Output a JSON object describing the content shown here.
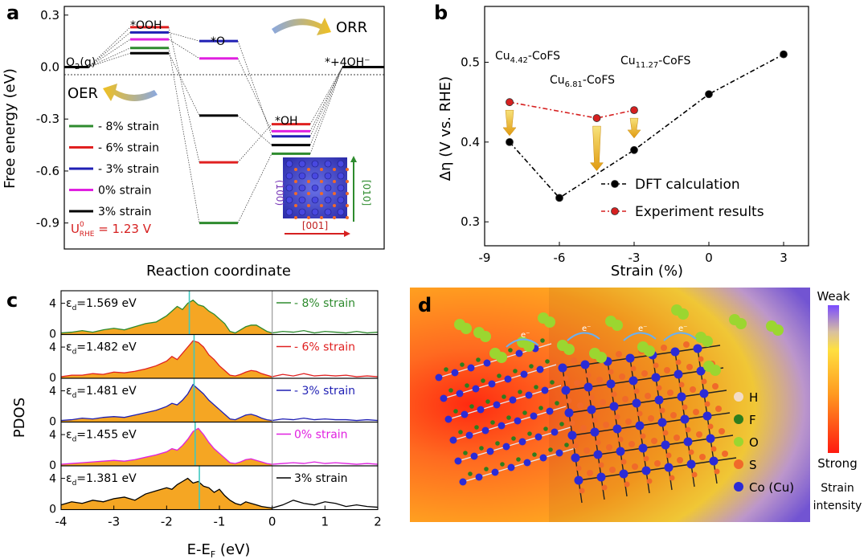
{
  "panels": {
    "a": {
      "letter": "a"
    },
    "b": {
      "letter": "b"
    },
    "c": {
      "letter": "c"
    },
    "d": {
      "letter": "d"
    }
  },
  "chart_data": [
    {
      "panel": "a",
      "type": "diagram",
      "ylabel": "Free energy (eV)",
      "xlabel": "Reaction coordinate",
      "ylim": [
        -1.05,
        0.35
      ],
      "yticks": [
        "0.3",
        "0.0",
        "-0.3",
        "-0.6",
        "-0.9"
      ],
      "ytick_values": [
        0.3,
        0.0,
        -0.3,
        -0.6,
        -0.9
      ],
      "states": [
        "O2(g)",
        "*OOH",
        "*O",
        "*OH",
        "*+4OH⁻"
      ],
      "state_labels": {
        "o2": "O",
        "o2_sub": "2",
        "o2_tail": "(g)",
        "ooh": "*OOH",
        "o": "*O",
        "oh": "*OH",
        "end": "*+4OH⁻"
      },
      "orr_label": "ORR",
      "oer_label": "OER",
      "u_label": {
        "u": "U",
        "sup": "0",
        "sub": "RHE",
        "value": " = 1.23 V"
      },
      "inset_labels": {
        "v100": "(100)",
        "h001": "[001]",
        "v010": "[010]"
      },
      "series": [
        {
          "name": "- 8% strain",
          "color": "#2e8b2e",
          "values": [
            0.0,
            0.11,
            -0.9,
            -0.5,
            0.0
          ]
        },
        {
          "name": "- 6% strain",
          "color": "#e02020",
          "values": [
            0.0,
            0.23,
            -0.55,
            -0.33,
            0.0
          ]
        },
        {
          "name": "- 3% strain",
          "color": "#1f1fb4",
          "values": [
            0.0,
            0.2,
            0.15,
            -0.4,
            0.0
          ]
        },
        {
          "name": "0% strain",
          "color": "#e020e0",
          "values": [
            0.0,
            0.16,
            0.05,
            -0.37,
            0.0
          ]
        },
        {
          "name": "3% strain",
          "color": "#000000",
          "values": [
            0.0,
            0.08,
            -0.28,
            -0.45,
            0.0
          ]
        }
      ]
    },
    {
      "panel": "b",
      "type": "line",
      "xlabel": "Strain (%)",
      "ylabel": "Δη (V vs. RHE)",
      "xlim": [
        -9,
        4
      ],
      "ylim": [
        0.27,
        0.57
      ],
      "xticks": [
        "-9",
        "-6",
        "-3",
        "0",
        "3"
      ],
      "xtick_values": [
        -9,
        -6,
        -3,
        0,
        3
      ],
      "yticks": [
        "0.3",
        "0.4",
        "0.5"
      ],
      "ytick_values": [
        0.3,
        0.4,
        0.5
      ],
      "legend": "bottom-right",
      "series": [
        {
          "name": "DFT calculation",
          "color": "#000000",
          "x": [
            -8,
            -6,
            -3,
            0,
            3
          ],
          "y": [
            0.4,
            0.33,
            0.39,
            0.46,
            0.51
          ]
        },
        {
          "name": "Experiment results",
          "color": "#d62020",
          "x": [
            -8,
            -4.5,
            -3
          ],
          "y": [
            0.45,
            0.43,
            0.44
          ]
        }
      ],
      "annotations": [
        {
          "base": "Cu",
          "sub": "4.42",
          "tail": "-CoFS"
        },
        {
          "base": "Cu",
          "sub": "6.81",
          "tail": "-CoFS"
        },
        {
          "base": "Cu",
          "sub": "11.27",
          "tail": "-CoFS"
        }
      ]
    },
    {
      "panel": "c",
      "type": "area",
      "xlabel_main": "E-E",
      "xlabel_sub": "F",
      "xlabel_unit": " (eV)",
      "ylabel": "PDOS",
      "xlim": [
        -4,
        2
      ],
      "xticks": [
        "-4",
        "-3",
        "-2",
        "-1",
        "0",
        "1",
        "2"
      ],
      "xtick_values": [
        -4,
        -3,
        -2,
        -1,
        0,
        1,
        2
      ],
      "ytick_labels": [
        "4",
        "0"
      ],
      "fill_color": "#f5a623",
      "dband_line_color": "#3ec8c0",
      "series": [
        {
          "name": "- 8% strain",
          "eps_value": "=1.569 eV",
          "dband_center": -1.57,
          "color": "#2e8b2e",
          "x": [
            -4,
            -3.8,
            -3.6,
            -3.4,
            -3.2,
            -3,
            -2.8,
            -2.6,
            -2.4,
            -2.2,
            -2,
            -1.9,
            -1.8,
            -1.7,
            -1.6,
            -1.5,
            -1.4,
            -1.3,
            -1.2,
            -1.1,
            -1,
            -0.9,
            -0.8,
            -0.7,
            -0.6,
            -0.5,
            -0.4,
            -0.3,
            -0.2,
            -0.1,
            0,
            0.2,
            0.4,
            0.6,
            0.8,
            1,
            1.2,
            1.4,
            1.6,
            1.8,
            2
          ],
          "y": [
            0.2,
            0.3,
            0.5,
            0.3,
            0.6,
            0.8,
            0.6,
            1.0,
            1.4,
            1.6,
            2.4,
            3.0,
            3.6,
            3.2,
            4.0,
            4.4,
            3.8,
            3.6,
            3.0,
            2.6,
            2.0,
            1.4,
            0.4,
            0.2,
            0.6,
            1.0,
            1.2,
            1.2,
            0.8,
            0.4,
            0.2,
            0.4,
            0.3,
            0.5,
            0.2,
            0.4,
            0.3,
            0.2,
            0.4,
            0.2,
            0.3
          ]
        },
        {
          "name": "- 6% strain",
          "eps_value": "=1.482 eV",
          "dband_center": -1.48,
          "color": "#e02020",
          "x": [
            -4,
            -3.8,
            -3.6,
            -3.4,
            -3.2,
            -3,
            -2.8,
            -2.6,
            -2.4,
            -2.2,
            -2,
            -1.9,
            -1.8,
            -1.7,
            -1.6,
            -1.5,
            -1.4,
            -1.3,
            -1.2,
            -1.1,
            -1,
            -0.9,
            -0.8,
            -0.7,
            -0.6,
            -0.5,
            -0.4,
            -0.3,
            -0.2,
            -0.1,
            0,
            0.2,
            0.4,
            0.6,
            0.8,
            1,
            1.2,
            1.4,
            1.6,
            1.8,
            2
          ],
          "y": [
            0.2,
            0.4,
            0.4,
            0.6,
            0.5,
            0.8,
            0.7,
            0.9,
            1.2,
            1.6,
            2.2,
            2.8,
            2.4,
            3.2,
            4.0,
            4.8,
            4.6,
            4.0,
            3.0,
            2.4,
            1.6,
            1.0,
            0.4,
            0.3,
            0.5,
            0.8,
            1.0,
            0.9,
            0.6,
            0.4,
            0.2,
            0.5,
            0.3,
            0.6,
            0.3,
            0.4,
            0.3,
            0.4,
            0.2,
            0.3,
            0.2
          ]
        },
        {
          "name": "- 3% strain",
          "eps_value": "=1.481 eV",
          "dband_center": -1.48,
          "color": "#1f1fb4",
          "x": [
            -4,
            -3.8,
            -3.6,
            -3.4,
            -3.2,
            -3,
            -2.8,
            -2.6,
            -2.4,
            -2.2,
            -2,
            -1.9,
            -1.8,
            -1.7,
            -1.6,
            -1.5,
            -1.4,
            -1.3,
            -1.2,
            -1.1,
            -1,
            -0.9,
            -0.8,
            -0.7,
            -0.6,
            -0.5,
            -0.4,
            -0.3,
            -0.2,
            -0.1,
            0,
            0.2,
            0.4,
            0.6,
            0.8,
            1,
            1.2,
            1.4,
            1.6,
            1.8,
            2
          ],
          "y": [
            0.2,
            0.3,
            0.5,
            0.4,
            0.6,
            0.7,
            0.6,
            0.9,
            1.2,
            1.5,
            2.0,
            2.4,
            2.2,
            2.8,
            3.6,
            4.8,
            4.2,
            3.6,
            2.8,
            2.2,
            1.6,
            1.0,
            0.4,
            0.3,
            0.6,
            0.9,
            1.0,
            0.8,
            0.5,
            0.3,
            0.2,
            0.4,
            0.3,
            0.5,
            0.3,
            0.4,
            0.3,
            0.3,
            0.2,
            0.3,
            0.2
          ]
        },
        {
          "name": "0% strain",
          "eps_value": "=1.455 eV",
          "dband_center": -1.46,
          "color": "#e020e0",
          "x": [
            -4,
            -3.8,
            -3.6,
            -3.4,
            -3.2,
            -3,
            -2.8,
            -2.6,
            -2.4,
            -2.2,
            -2,
            -1.9,
            -1.8,
            -1.7,
            -1.6,
            -1.5,
            -1.4,
            -1.3,
            -1.2,
            -1.1,
            -1,
            -0.9,
            -0.8,
            -0.7,
            -0.6,
            -0.5,
            -0.4,
            -0.3,
            -0.2,
            -0.1,
            0,
            0.2,
            0.4,
            0.6,
            0.8,
            1,
            1.2,
            1.4,
            1.6,
            1.8,
            2
          ],
          "y": [
            0.2,
            0.3,
            0.4,
            0.5,
            0.6,
            0.7,
            0.6,
            0.8,
            1.1,
            1.4,
            1.8,
            2.2,
            2.0,
            2.6,
            3.4,
            4.4,
            4.8,
            4.0,
            3.0,
            2.2,
            1.6,
            1.0,
            0.4,
            0.3,
            0.5,
            0.8,
            0.9,
            0.7,
            0.5,
            0.3,
            0.2,
            0.3,
            0.4,
            0.3,
            0.5,
            0.3,
            0.4,
            0.3,
            0.2,
            0.3,
            0.2
          ]
        },
        {
          "name": "3% strain",
          "eps_value": "=1.381 eV",
          "dband_center": -1.38,
          "color": "#000000",
          "x": [
            -4,
            -3.8,
            -3.6,
            -3.4,
            -3.2,
            -3,
            -2.8,
            -2.6,
            -2.4,
            -2.2,
            -2,
            -1.9,
            -1.8,
            -1.7,
            -1.6,
            -1.5,
            -1.4,
            -1.3,
            -1.2,
            -1.1,
            -1,
            -0.9,
            -0.8,
            -0.7,
            -0.6,
            -0.5,
            -0.4,
            -0.3,
            -0.2,
            -0.1,
            0,
            0.2,
            0.4,
            0.6,
            0.8,
            1,
            1.2,
            1.4,
            1.6,
            1.8,
            2
          ],
          "y": [
            0.6,
            1.0,
            0.8,
            1.2,
            1.0,
            1.4,
            1.6,
            1.2,
            2.0,
            2.4,
            2.8,
            2.6,
            3.2,
            3.6,
            4.0,
            3.4,
            3.6,
            3.0,
            2.8,
            2.2,
            2.6,
            1.8,
            1.2,
            0.8,
            0.6,
            1.0,
            0.8,
            0.6,
            0.4,
            0.3,
            0.2,
            0.6,
            1.2,
            0.8,
            0.6,
            1.0,
            0.8,
            0.4,
            0.6,
            0.4,
            0.3
          ]
        }
      ]
    }
  ],
  "panel_d": {
    "colorbar_top": "Weak",
    "colorbar_bottom": "Strong",
    "caption_line1": "Strain",
    "caption_line2": "intensity",
    "legend": [
      {
        "label": "H",
        "color": "#f3dcc8"
      },
      {
        "label": "F",
        "color": "#2e7d1e"
      },
      {
        "label": "O",
        "color": "#9bd630"
      },
      {
        "label": "S",
        "color": "#f06a2a"
      },
      {
        "label": "Co (Cu)",
        "color": "#2b2bd6"
      }
    ],
    "electron_label": "e⁻"
  }
}
